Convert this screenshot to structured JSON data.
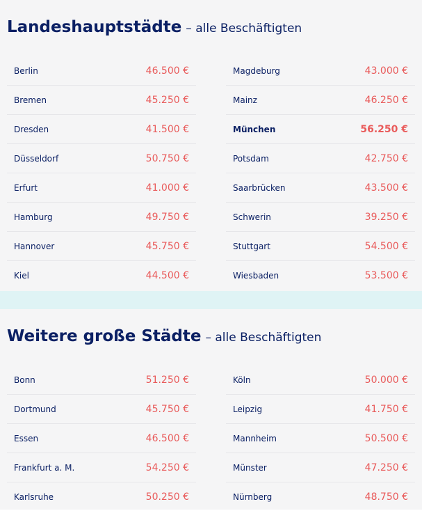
{
  "capitals": {
    "title": "Landeshauptstädte",
    "subtitle": "– alle Beschäftigten",
    "left": [
      {
        "city": "Berlin",
        "value": "46.500 €"
      },
      {
        "city": "Bremen",
        "value": "45.250 €"
      },
      {
        "city": "Dresden",
        "value": "41.500 €"
      },
      {
        "city": "Düsseldorf",
        "value": "50.750 €"
      },
      {
        "city": "Erfurt",
        "value": "41.000 €"
      },
      {
        "city": "Hamburg",
        "value": "49.750 €"
      },
      {
        "city": "Hannover",
        "value": "45.750 €"
      },
      {
        "city": "Kiel",
        "value": "44.500 €"
      }
    ],
    "right": [
      {
        "city": "Magdeburg",
        "value": "43.000 €"
      },
      {
        "city": "Mainz",
        "value": "46.250 €"
      },
      {
        "city": "München",
        "value": "56.250 €",
        "highlight": true
      },
      {
        "city": "Potsdam",
        "value": "42.750 €"
      },
      {
        "city": "Saarbrücken",
        "value": "43.500 €"
      },
      {
        "city": "Schwerin",
        "value": "39.250 €"
      },
      {
        "city": "Stuttgart",
        "value": "54.500 €"
      },
      {
        "city": "Wiesbaden",
        "value": "53.500 €"
      }
    ]
  },
  "other": {
    "title": "Weitere große Städte",
    "subtitle": "– alle Beschäftigten",
    "left": [
      {
        "city": "Bonn",
        "value": "51.250 €"
      },
      {
        "city": "Dortmund",
        "value": "45.750 €"
      },
      {
        "city": "Essen",
        "value": "46.500 €"
      },
      {
        "city": "Frankfurt a. M.",
        "value": "54.250 €"
      },
      {
        "city": "Karlsruhe",
        "value": "50.250 €"
      }
    ],
    "right": [
      {
        "city": "Köln",
        "value": "50.000 €"
      },
      {
        "city": "Leipzig",
        "value": "41.750 €"
      },
      {
        "city": "Mannheim",
        "value": "50.500 €"
      },
      {
        "city": "Münster",
        "value": "47.250 €"
      },
      {
        "city": "Nürnberg",
        "value": "48.750 €"
      }
    ]
  },
  "colors": {
    "title": "#0b2064",
    "value": "#e95b5b",
    "band": "#dff3f5",
    "panel": "#f5f5f6"
  }
}
